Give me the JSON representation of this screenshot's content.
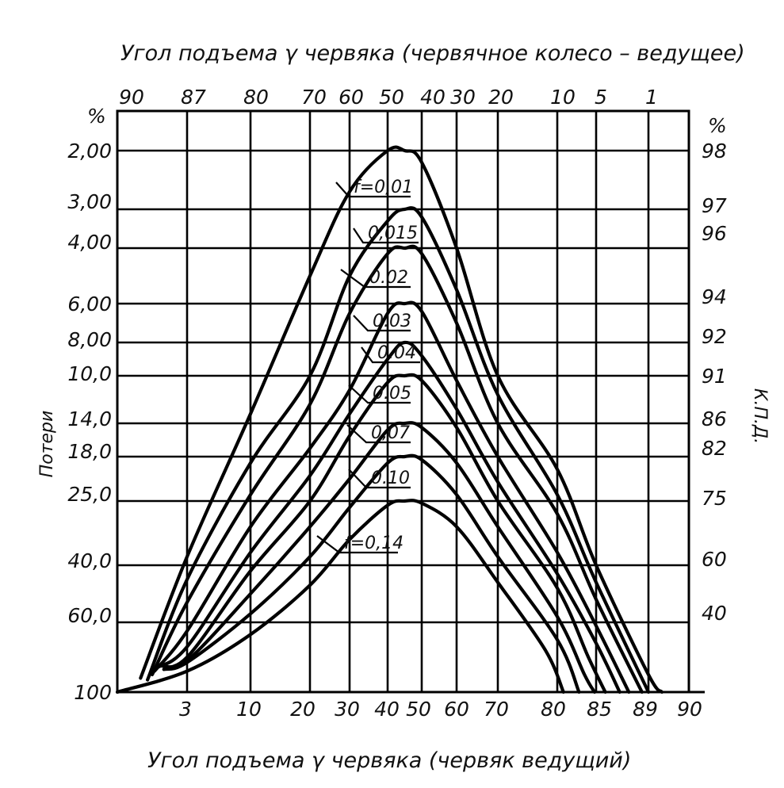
{
  "chart_data": {
    "type": "line",
    "title_top": "Угол подъема  γ червяка  (червячное колесо – ведущее)",
    "title_bottom": "Угол подъема  γ червяка (червяк ведущий)",
    "ylabel_left": "Потери",
    "ylabel_right": "К.П.Д.",
    "unit_left": "%",
    "unit_right": "%",
    "x_bottom_ticks": [
      "3",
      "10",
      "20",
      "30",
      "40",
      "50",
      "60",
      "70",
      "80",
      "85",
      "89",
      "90"
    ],
    "x_top_ticks": [
      "90",
      "87",
      "80",
      "70",
      "60",
      "50",
      "40",
      "30",
      "20",
      "10",
      "5",
      "1"
    ],
    "y_left_ticks": [
      "2,00",
      "3,00",
      "4,00",
      "6,00",
      "8,00",
      "10,0",
      "14,0",
      "18,0",
      "25,0",
      "40,0",
      "60,0",
      "100"
    ],
    "y_right_ticks": [
      "98",
      "97",
      "96",
      "94",
      "92",
      "91",
      "86",
      "82",
      "75",
      "60",
      "40"
    ],
    "series": [
      {
        "name": "f=0,01",
        "peak_efficiency": 98,
        "points": [
          [
            1,
            8
          ],
          [
            3,
            62
          ],
          [
            10,
            87
          ],
          [
            20,
            95
          ],
          [
            30,
            97.3
          ],
          [
            40,
            98
          ],
          [
            45,
            98
          ],
          [
            50,
            97.8
          ],
          [
            60,
            96
          ],
          [
            70,
            91
          ],
          [
            80,
            80
          ],
          [
            85,
            60
          ],
          [
            89,
            10
          ],
          [
            90,
            0
          ]
        ]
      },
      {
        "name": "0,015",
        "peak_efficiency": 97,
        "points": [
          [
            1.3,
            7
          ],
          [
            3,
            55
          ],
          [
            10,
            81
          ],
          [
            20,
            91
          ],
          [
            30,
            95
          ],
          [
            40,
            96.7
          ],
          [
            45,
            97
          ],
          [
            50,
            96.8
          ],
          [
            60,
            94.5
          ],
          [
            70,
            89
          ],
          [
            80,
            76
          ],
          [
            85,
            54
          ],
          [
            89,
            0
          ]
        ]
      },
      {
        "name": "0.02",
        "peak_efficiency": 96,
        "points": [
          [
            1.5,
            10
          ],
          [
            3,
            47
          ],
          [
            10,
            76
          ],
          [
            20,
            88
          ],
          [
            30,
            93.5
          ],
          [
            40,
            95.8
          ],
          [
            45,
            96
          ],
          [
            50,
            95.8
          ],
          [
            60,
            93
          ],
          [
            70,
            86
          ],
          [
            80,
            72
          ],
          [
            85,
            48
          ],
          [
            88.5,
            0
          ]
        ]
      },
      {
        "name": "0.03",
        "peak_efficiency": 94,
        "points": [
          [
            1.6,
            12
          ],
          [
            3,
            35
          ],
          [
            10,
            69
          ],
          [
            20,
            83
          ],
          [
            30,
            89.5
          ],
          [
            40,
            93.5
          ],
          [
            45,
            94
          ],
          [
            50,
            93.6
          ],
          [
            60,
            90.5
          ],
          [
            70,
            82
          ],
          [
            80,
            63
          ],
          [
            85,
            38
          ],
          [
            87.5,
            0
          ]
        ]
      },
      {
        "name": "0.04",
        "peak_efficiency": 92,
        "points": [
          [
            1.7,
            14
          ],
          [
            3,
            26
          ],
          [
            10,
            63
          ],
          [
            20,
            79
          ],
          [
            30,
            87
          ],
          [
            40,
            91.5
          ],
          [
            45,
            92
          ],
          [
            50,
            91.6
          ],
          [
            60,
            87.5
          ],
          [
            70,
            78
          ],
          [
            80,
            57
          ],
          [
            85,
            28
          ],
          [
            86.8,
            0
          ]
        ]
      },
      {
        "name": "0.05",
        "peak_efficiency": 91,
        "points": [
          [
            1.8,
            15
          ],
          [
            3,
            20
          ],
          [
            10,
            58
          ],
          [
            20,
            75
          ],
          [
            30,
            84.5
          ],
          [
            40,
            90.3
          ],
          [
            45,
            91
          ],
          [
            50,
            90.5
          ],
          [
            60,
            85.5
          ],
          [
            70,
            75
          ],
          [
            80,
            52
          ],
          [
            84,
            20
          ],
          [
            85.7,
            0
          ]
        ]
      },
      {
        "name": "0,07",
        "peak_efficiency": 86,
        "points": [
          [
            1.9,
            15
          ],
          [
            3,
            18
          ],
          [
            10,
            50
          ],
          [
            20,
            69
          ],
          [
            30,
            78.5
          ],
          [
            40,
            85.2
          ],
          [
            45,
            86
          ],
          [
            50,
            85.5
          ],
          [
            60,
            81
          ],
          [
            70,
            69
          ],
          [
            80,
            42
          ],
          [
            83.5,
            10
          ],
          [
            84.8,
            0
          ]
        ]
      },
      {
        "name": "0.10",
        "peak_efficiency": 82,
        "points": [
          [
            2,
            13
          ],
          [
            3,
            17
          ],
          [
            10,
            43
          ],
          [
            20,
            62
          ],
          [
            30,
            73.5
          ],
          [
            40,
            81
          ],
          [
            45,
            82
          ],
          [
            50,
            81.5
          ],
          [
            60,
            76
          ],
          [
            70,
            62
          ],
          [
            80,
            30
          ],
          [
            82.8,
            0
          ]
        ]
      },
      {
        "name": "f=0,14",
        "peak_efficiency": 75,
        "points": [
          [
            0,
            0
          ],
          [
            3,
            12
          ],
          [
            10,
            33
          ],
          [
            20,
            53
          ],
          [
            30,
            66
          ],
          [
            40,
            74
          ],
          [
            45,
            75
          ],
          [
            50,
            74.5
          ],
          [
            60,
            69
          ],
          [
            70,
            54
          ],
          [
            78,
            24
          ],
          [
            80.8,
            0
          ]
        ]
      }
    ]
  }
}
